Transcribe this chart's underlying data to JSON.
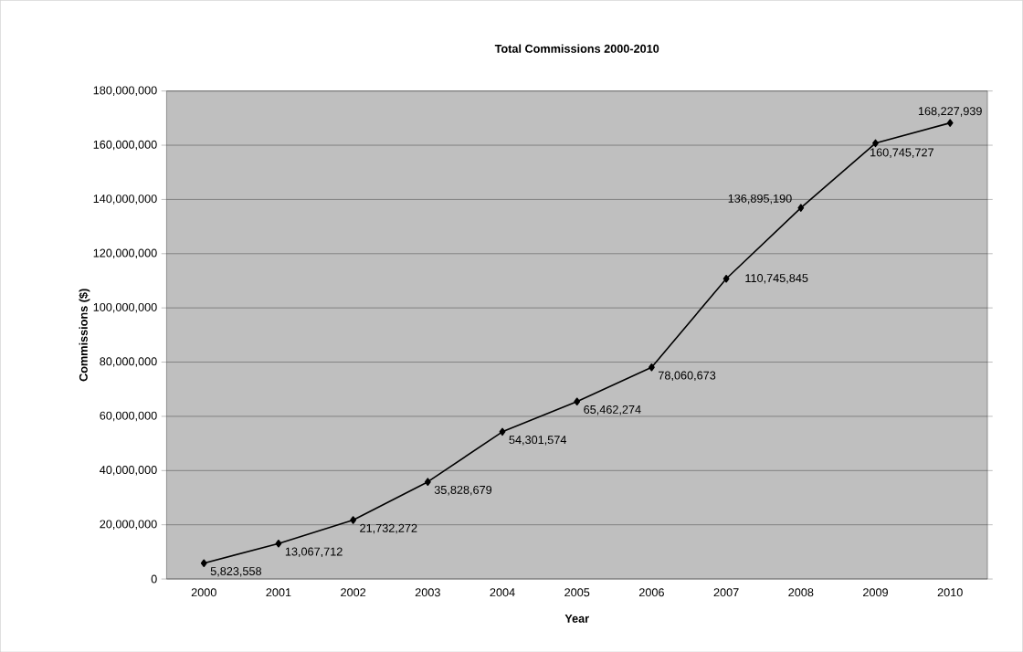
{
  "chart_data": {
    "type": "line",
    "title": "Total Commissions 2000-2010",
    "xlabel": "Year",
    "ylabel": "Commissions ($)",
    "categories": [
      "2000",
      "2001",
      "2002",
      "2003",
      "2004",
      "2005",
      "2006",
      "2007",
      "2008",
      "2009",
      "2010"
    ],
    "series": [
      {
        "color": "#000000",
        "values": [
          5823558,
          13067712,
          21732272,
          35828679,
          54301574,
          65462274,
          78060673,
          110745845,
          136895190,
          160745727,
          168227939
        ],
        "value_labels": [
          "5,823,558",
          "13,067,712",
          "21,732,272",
          "35,828,679",
          "54,301,574",
          "65,462,274",
          "78,060,673",
          "110,745,845",
          "136,895,190",
          "160,745,727",
          "168,227,939"
        ]
      }
    ],
    "ylim": [
      0,
      180000000
    ],
    "yticks": [
      {
        "value": 0,
        "label": "0"
      },
      {
        "value": 20000000,
        "label": "20,000,000"
      },
      {
        "value": 40000000,
        "label": "40,000,000"
      },
      {
        "value": 60000000,
        "label": "60,000,000"
      },
      {
        "value": 80000000,
        "label": "80,000,000"
      },
      {
        "value": 100000000,
        "label": "100,000,000"
      },
      {
        "value": 120000000,
        "label": "120,000,000"
      },
      {
        "value": 140000000,
        "label": "140,000,000"
      },
      {
        "value": 160000000,
        "label": "160,000,000"
      },
      {
        "value": 180000000,
        "label": "180,000,000"
      }
    ],
    "grid": "y",
    "marker": "diamond",
    "line_style": "solid"
  }
}
